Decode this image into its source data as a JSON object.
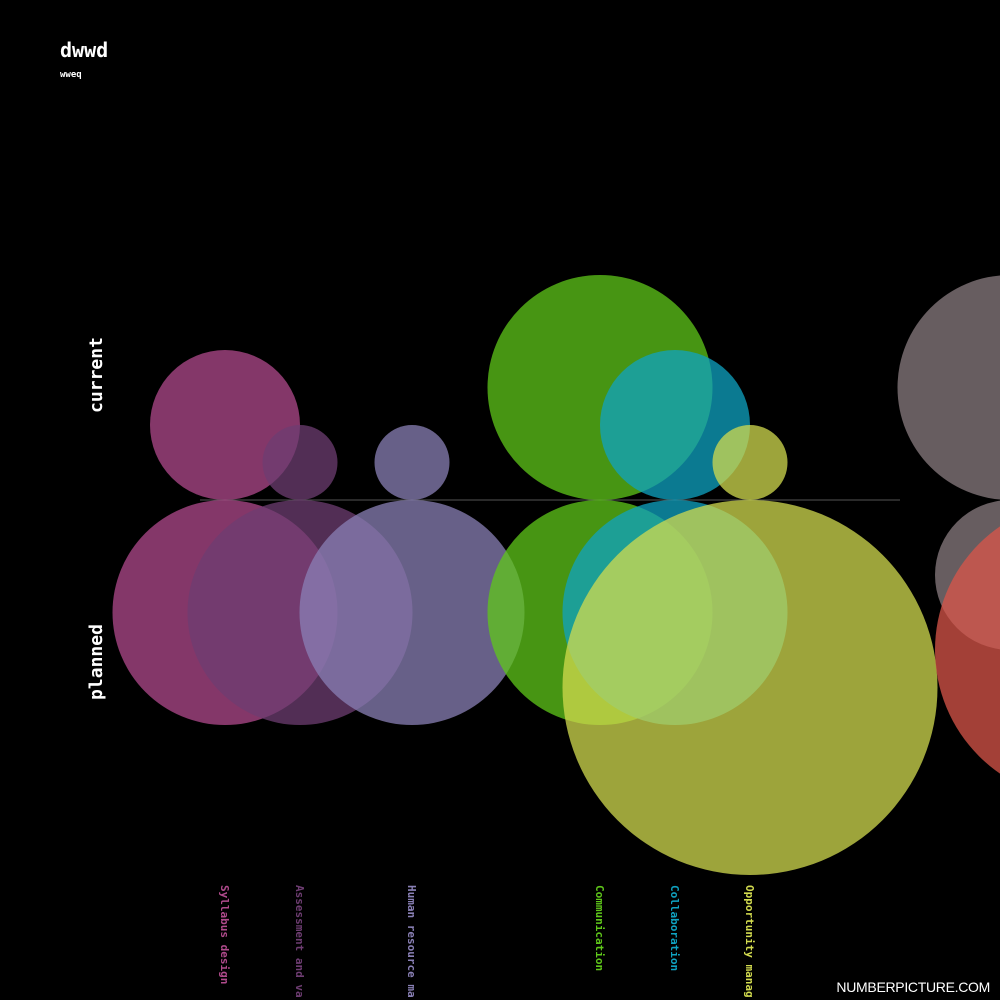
{
  "title": "dwwd",
  "subtitle": "wweq",
  "watermark": "NUMBERPICTURE.COM",
  "chart_data": {
    "type": "bubble-comparison",
    "row_labels": [
      "current",
      "planned"
    ],
    "categories": [
      {
        "name": "Syllabus design",
        "color": "#b04a8c",
        "current": 4,
        "planned": 6
      },
      {
        "name": "Assessment and va",
        "color": "#6e3d72",
        "current": 2,
        "planned": 6
      },
      {
        "name": "Human resource ma",
        "color": "#8a80b6",
        "current": 2,
        "planned": 6
      },
      {
        "name": "Communication",
        "color": "#5fc71a",
        "current": 6,
        "planned": 6
      },
      {
        "name": "Collaboration",
        "color": "#0fa3c2",
        "current": 4,
        "planned": 6
      },
      {
        "name": "Opportunity manag",
        "color": "#d2db4f",
        "current": 2,
        "planned": 10
      }
    ],
    "offscreen_series": [
      {
        "color": "#8a7c80",
        "current": 6,
        "planned": 4
      },
      {
        "color": "#d9564a",
        "current": null,
        "planned": 8
      }
    ]
  }
}
